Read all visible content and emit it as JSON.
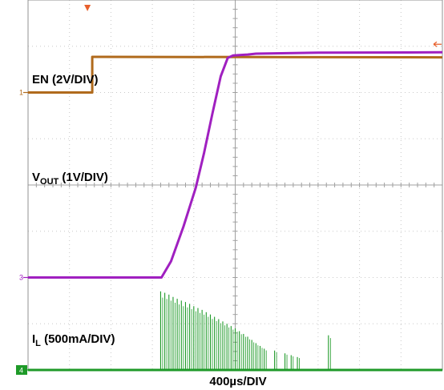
{
  "chart_data": {
    "type": "line",
    "title": "",
    "xlabel": "400µs/DIV",
    "x_divisions": 10,
    "y_divisions": 8,
    "grid": true,
    "xlim_div": [
      0,
      10
    ],
    "ylim_div": [
      0,
      8
    ],
    "series": [
      {
        "name": "EN (2V/DIV)",
        "channel_marker": "1",
        "color": "#b06a1c",
        "points_div": [
          [
            0.0,
            6.0
          ],
          [
            1.55,
            6.0
          ],
          [
            1.55,
            6.77
          ],
          [
            1.62,
            6.77
          ],
          [
            10.0,
            6.76
          ]
        ]
      },
      {
        "name": "VOUT (1V/DIV)",
        "channel_marker": "3",
        "color": "#a020c0",
        "points_div": [
          [
            0.0,
            2.0
          ],
          [
            3.22,
            2.0
          ],
          [
            3.45,
            2.35
          ],
          [
            3.75,
            3.1
          ],
          [
            4.05,
            3.95
          ],
          [
            4.25,
            4.7
          ],
          [
            4.45,
            5.55
          ],
          [
            4.65,
            6.35
          ],
          [
            4.82,
            6.75
          ],
          [
            4.95,
            6.8
          ],
          [
            5.3,
            6.82
          ],
          [
            5.5,
            6.84
          ],
          [
            7.0,
            6.86
          ],
          [
            10.0,
            6.87
          ]
        ]
      },
      {
        "name": "IL (500mA/DIV)",
        "channel_marker": "4",
        "color": "#1e9a28",
        "points_div": [
          [
            0.0,
            0.0
          ],
          [
            3.15,
            0.0
          ],
          [
            10.0,
            0.0
          ]
        ],
        "pulses_div": [
          [
            3.2,
            1.7
          ],
          [
            3.3,
            1.67
          ],
          [
            3.4,
            1.63
          ],
          [
            3.5,
            1.58
          ],
          [
            3.6,
            1.54
          ],
          [
            3.7,
            1.5
          ],
          [
            3.8,
            1.47
          ],
          [
            3.9,
            1.43
          ],
          [
            4.0,
            1.38
          ],
          [
            4.1,
            1.34
          ],
          [
            4.2,
            1.3
          ],
          [
            4.3,
            1.25
          ],
          [
            4.4,
            1.2
          ],
          [
            4.5,
            1.15
          ],
          [
            4.6,
            1.1
          ],
          [
            4.7,
            1.05
          ],
          [
            4.8,
            1.0
          ],
          [
            4.9,
            0.95
          ],
          [
            5.0,
            0.9
          ],
          [
            5.1,
            0.84
          ],
          [
            5.2,
            0.78
          ],
          [
            5.3,
            0.72
          ],
          [
            5.4,
            0.65
          ],
          [
            5.5,
            0.58
          ],
          [
            5.6,
            0.52
          ],
          [
            5.7,
            0.46
          ],
          [
            5.95,
            0.42
          ],
          [
            6.2,
            0.36
          ],
          [
            6.35,
            0.32
          ],
          [
            6.5,
            0.28
          ],
          [
            7.25,
            0.75
          ]
        ]
      }
    ],
    "channel_labels": [
      {
        "text": "EN (2V/DIV)"
      },
      {
        "text": "V",
        "sub": "OUT",
        "suffix": " (1V/DIV)"
      },
      {
        "text": "I",
        "sub": "L",
        "suffix": " (500mA/DIV)"
      }
    ],
    "channel_markers": [
      "1",
      "3",
      "4"
    ],
    "trigger_marker_color": "#e8602c",
    "time_label": "400µs/DIV"
  }
}
